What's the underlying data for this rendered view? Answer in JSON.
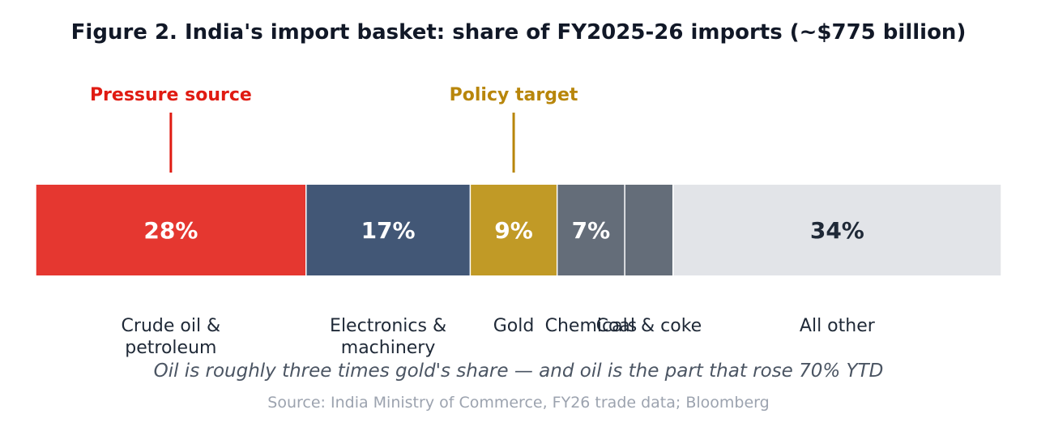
{
  "chart_data": {
    "type": "bar",
    "orientation": "horizontal-stacked-100",
    "title": "Figure 2. India's import basket: share of FY2025-26 imports (~$775 billion)",
    "segments": [
      {
        "category": "Crude oil & petroleum",
        "lines": [
          "Crude oil &",
          "petroleum"
        ],
        "value": 28,
        "label": "28%",
        "color": "#e53730",
        "label_color": "#ffffff"
      },
      {
        "category": "Electronics & machinery",
        "lines": [
          "Electronics &",
          "machinery"
        ],
        "value": 17,
        "label": "17%",
        "color": "#425776",
        "label_color": "#ffffff"
      },
      {
        "category": "Gold",
        "lines": [
          "Gold"
        ],
        "value": 9,
        "label": "9%",
        "color": "#c19a26",
        "label_color": "#ffffff"
      },
      {
        "category": "Chemicals",
        "lines": [
          "Chemicals"
        ],
        "value": 7,
        "label": "7%",
        "color": "#646d79",
        "label_color": "#ffffff"
      },
      {
        "category": "Coal & coke",
        "lines": [
          "Coal & coke"
        ],
        "value": 5,
        "label": "",
        "color": "#646d79",
        "label_color": "#ffffff"
      },
      {
        "category": "All other",
        "lines": [
          "All other"
        ],
        "value": 34,
        "label": "34%",
        "color": "#e2e4e8",
        "label_color": "#1f2937"
      }
    ],
    "annotations": [
      {
        "text": "Pressure source",
        "segment": 0,
        "color": "#e01b12"
      },
      {
        "text": "Policy target",
        "segment": 2,
        "color": "#b8860b"
      }
    ],
    "caption": "Oil is roughly three times gold's share — and oil is the part that rose 70% YTD",
    "source": "Source: India Ministry of Commerce, FY26 trade data; Bloomberg"
  }
}
